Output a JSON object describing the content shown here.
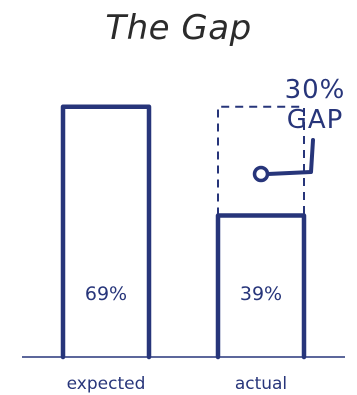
{
  "chart_data": {
    "type": "bar",
    "title": "The Gap",
    "categories": [
      "expected",
      "actual"
    ],
    "values": [
      69,
      39
    ],
    "value_labels": [
      "69%",
      "39%"
    ],
    "ylim": [
      0,
      75
    ],
    "grid": false,
    "annotation": {
      "lines": [
        "30%",
        "GAP"
      ],
      "gap_value": 30
    },
    "colors": {
      "bar_stroke": "#27357a",
      "text": "#27357a",
      "title": "#2b2b2b"
    }
  }
}
